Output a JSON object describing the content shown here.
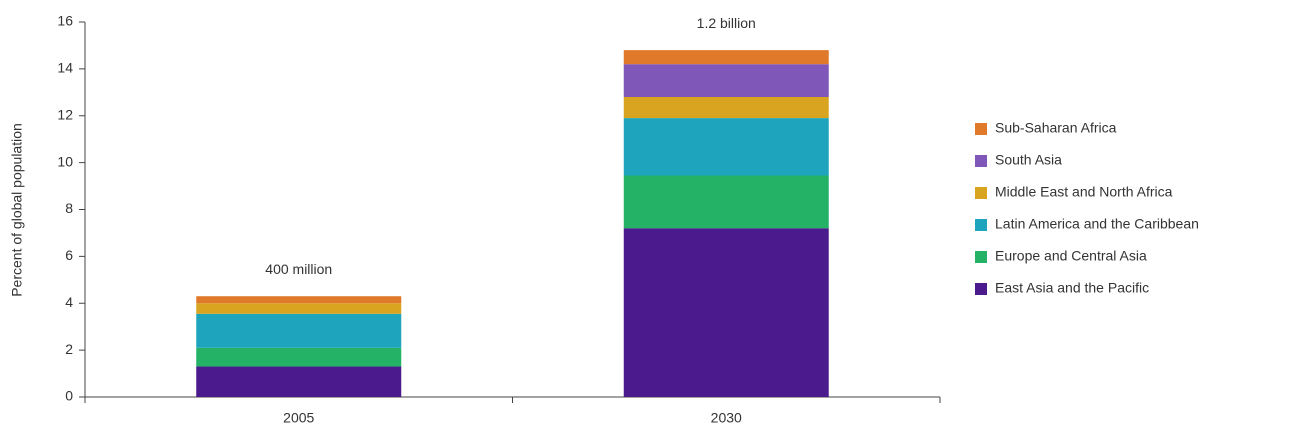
{
  "chart_data": {
    "type": "stacked_bar",
    "y_axis_label": "Percent of global population",
    "categories": [
      "2005",
      "2030"
    ],
    "annotations": [
      "400 million",
      "1.2 billion"
    ],
    "series": [
      {
        "name": "East Asia and the Pacific",
        "color": "#4b1a8c",
        "values": [
          1.3,
          7.2
        ]
      },
      {
        "name": "Europe and Central Asia",
        "color": "#23b266",
        "values": [
          0.8,
          2.25
        ]
      },
      {
        "name": "Latin America and the Caribbean",
        "color": "#1ea5bd",
        "values": [
          1.45,
          2.45
        ]
      },
      {
        "name": "Middle East and North Africa",
        "color": "#d9a520",
        "values": [
          0.45,
          0.9
        ]
      },
      {
        "name": "South Asia",
        "color": "#7e57b8",
        "values": [
          0,
          1.4
        ]
      },
      {
        "name": "Sub-Saharan Africa",
        "color": "#e07a2a",
        "values": [
          0.3,
          0.6
        ]
      }
    ],
    "ylim": [
      0,
      16
    ],
    "yticks": [
      0,
      2,
      4,
      6,
      8,
      10,
      12,
      14,
      16
    ],
    "legend": "right"
  }
}
